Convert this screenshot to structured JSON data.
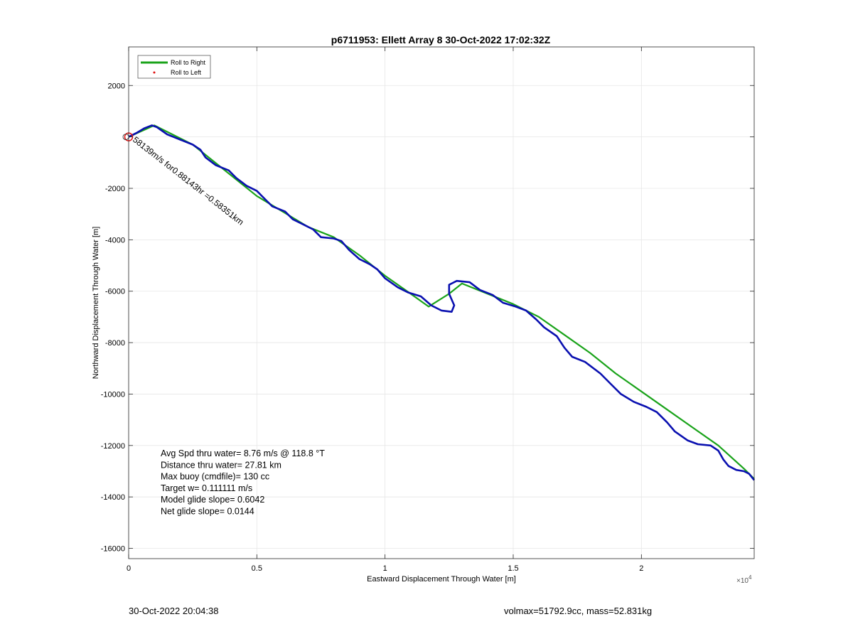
{
  "chart_data": {
    "type": "line",
    "title": "p6711953: Ellett Array 8 30-Oct-2022 17:02:32Z",
    "xlabel": "Eastward Displacement Through Water [m]",
    "ylabel": "Northward Displacement Through Water [m]",
    "x_exponent_label": "×10",
    "x_exponent_power": "4",
    "xlim": [
      0,
      24400
    ],
    "ylim": [
      -16400,
      3500
    ],
    "x_ticks": [
      {
        "value": 0,
        "label": "0"
      },
      {
        "value": 5000,
        "label": "0.5"
      },
      {
        "value": 10000,
        "label": "1"
      },
      {
        "value": 15000,
        "label": "1.5"
      },
      {
        "value": 20000,
        "label": "2"
      }
    ],
    "y_ticks": [
      {
        "value": 2000,
        "label": "2000"
      },
      {
        "value": 0,
        "label": ""
      },
      {
        "value": -2000,
        "label": "-2000"
      },
      {
        "value": -4000,
        "label": "-4000"
      },
      {
        "value": -6000,
        "label": "-6000"
      },
      {
        "value": -8000,
        "label": "-8000"
      },
      {
        "value": -10000,
        "label": "-10000"
      },
      {
        "value": -12000,
        "label": "-12000"
      },
      {
        "value": -14000,
        "label": "-14000"
      },
      {
        "value": -16000,
        "label": "-16000"
      }
    ],
    "grid": true,
    "legend_position": "top-left",
    "legend": [
      {
        "label": "Roll to Right",
        "style": "line",
        "color": "#1aa31a"
      },
      {
        "label": "Roll to Left",
        "style": "dot",
        "color": "#e01010"
      }
    ],
    "series": [
      {
        "name": "Roll to Right",
        "color": "#1aa31a",
        "points": [
          [
            0,
            0
          ],
          [
            1000,
            450
          ],
          [
            2500,
            -300
          ],
          [
            4000,
            -1500
          ],
          [
            5000,
            -2300
          ],
          [
            6000,
            -2900
          ],
          [
            7000,
            -3500
          ],
          [
            8000,
            -3900
          ],
          [
            9000,
            -4600
          ],
          [
            10000,
            -5400
          ],
          [
            11000,
            -6100
          ],
          [
            11700,
            -6600
          ],
          [
            12500,
            -6100
          ],
          [
            13000,
            -5700
          ],
          [
            14000,
            -6100
          ],
          [
            15000,
            -6500
          ],
          [
            16000,
            -7000
          ],
          [
            17000,
            -7700
          ],
          [
            18000,
            -8400
          ],
          [
            19000,
            -9200
          ],
          [
            20000,
            -9900
          ],
          [
            21000,
            -10600
          ],
          [
            22000,
            -11300
          ],
          [
            23000,
            -12000
          ],
          [
            24000,
            -12900
          ],
          [
            24400,
            -13300
          ]
        ]
      },
      {
        "name": "",
        "color": "#0a10b0",
        "points": [
          [
            0,
            0
          ],
          [
            300,
            150
          ],
          [
            600,
            330
          ],
          [
            900,
            450
          ],
          [
            1100,
            380
          ],
          [
            1500,
            100
          ],
          [
            2000,
            -100
          ],
          [
            2500,
            -300
          ],
          [
            2800,
            -500
          ],
          [
            3000,
            -800
          ],
          [
            3400,
            -1100
          ],
          [
            3900,
            -1300
          ],
          [
            4200,
            -1600
          ],
          [
            4600,
            -1900
          ],
          [
            5000,
            -2100
          ],
          [
            5300,
            -2400
          ],
          [
            5600,
            -2700
          ],
          [
            6100,
            -2900
          ],
          [
            6400,
            -3200
          ],
          [
            6800,
            -3400
          ],
          [
            7200,
            -3600
          ],
          [
            7500,
            -3900
          ],
          [
            8000,
            -3950
          ],
          [
            8300,
            -4050
          ],
          [
            8600,
            -4400
          ],
          [
            9000,
            -4750
          ],
          [
            9400,
            -4950
          ],
          [
            9700,
            -5150
          ],
          [
            10000,
            -5500
          ],
          [
            10500,
            -5850
          ],
          [
            10900,
            -6050
          ],
          [
            11400,
            -6200
          ],
          [
            11800,
            -6550
          ],
          [
            12200,
            -6750
          ],
          [
            12600,
            -6800
          ],
          [
            12700,
            -6550
          ],
          [
            12500,
            -6100
          ],
          [
            12500,
            -5750
          ],
          [
            12800,
            -5600
          ],
          [
            13300,
            -5650
          ],
          [
            13700,
            -5950
          ],
          [
            14200,
            -6150
          ],
          [
            14600,
            -6450
          ],
          [
            15100,
            -6600
          ],
          [
            15500,
            -6750
          ],
          [
            15900,
            -7100
          ],
          [
            16200,
            -7400
          ],
          [
            16700,
            -7750
          ],
          [
            17000,
            -8200
          ],
          [
            17300,
            -8550
          ],
          [
            17800,
            -8750
          ],
          [
            18400,
            -9200
          ],
          [
            18800,
            -9600
          ],
          [
            19200,
            -10000
          ],
          [
            19700,
            -10300
          ],
          [
            20200,
            -10500
          ],
          [
            20600,
            -10700
          ],
          [
            21000,
            -11100
          ],
          [
            21300,
            -11450
          ],
          [
            21800,
            -11800
          ],
          [
            22200,
            -11950
          ],
          [
            22700,
            -12000
          ],
          [
            23000,
            -12200
          ],
          [
            23200,
            -12550
          ],
          [
            23400,
            -12800
          ],
          [
            23700,
            -12950
          ],
          [
            24000,
            -13000
          ],
          [
            24200,
            -13100
          ],
          [
            24400,
            -13350
          ]
        ]
      }
    ],
    "start_marker": {
      "x": 0,
      "y": 0,
      "color": "#e01010"
    },
    "annotation_inline": "58139m/s for0.88143hr =0.58351km",
    "stats": [
      "Avg Spd thru water=  8.76 m/s @ 118.8 °T",
      "Distance thru water= 27.81 km",
      "Max buoy (cmdfile)= 130 cc",
      "Target w= 0.111111 m/s",
      "Model glide slope= 0.6042",
      "Net glide slope= 0.0144"
    ]
  },
  "footer": {
    "date": "30-Oct-2022 20:04:38",
    "vol_mass": "volmax=51792.9cc, mass=52.831kg"
  }
}
